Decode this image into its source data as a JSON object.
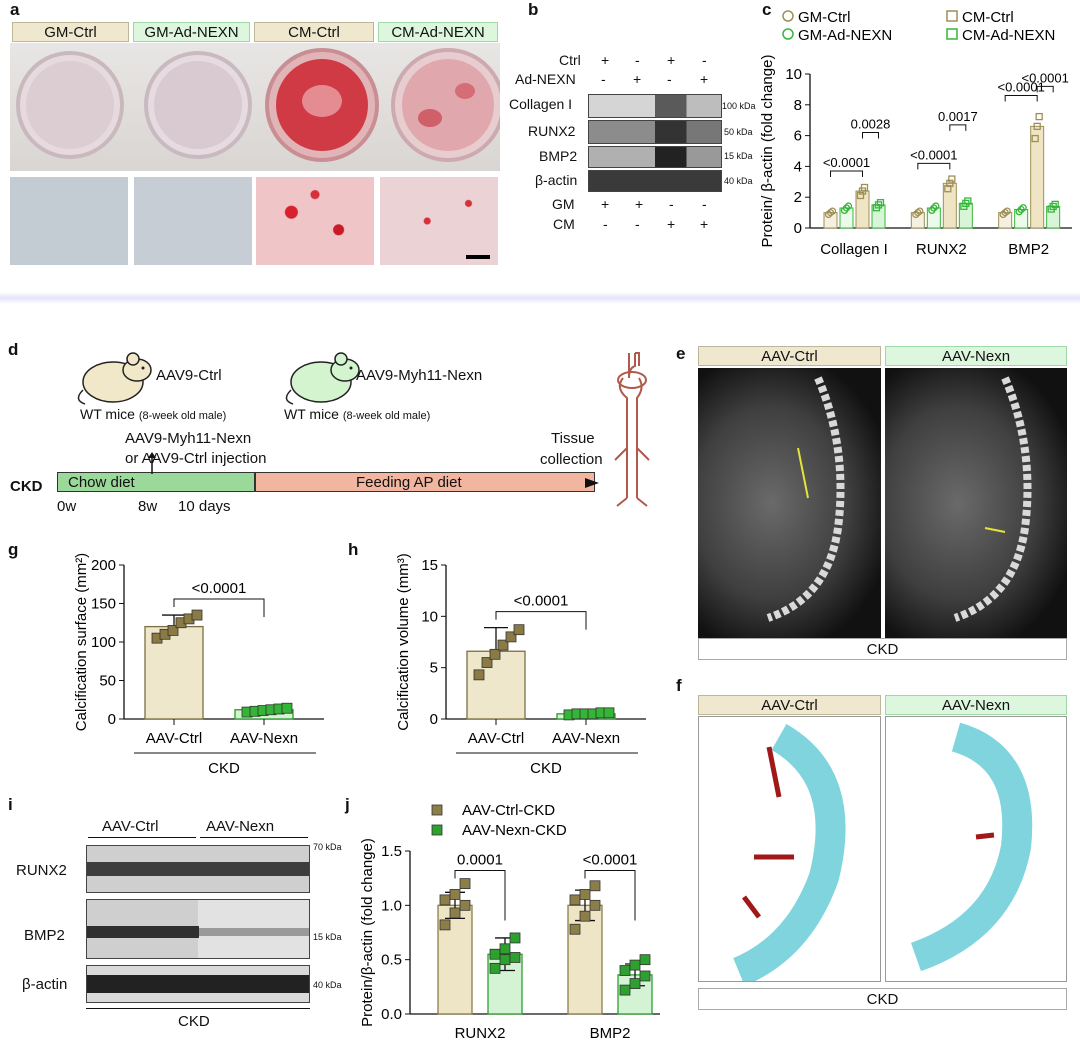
{
  "panel_labels": {
    "a": "a",
    "b": "b",
    "c": "c",
    "d": "d",
    "e": "e",
    "f": "f",
    "g": "g",
    "h": "h",
    "i": "i",
    "j": "j"
  },
  "panel_a": {
    "groups": [
      "GM-Ctrl",
      "GM-Ad-NEXN",
      "CM-Ctrl",
      "CM-Ad-NEXN"
    ]
  },
  "panel_b": {
    "row_labels": [
      "Ctrl",
      "Ad-NEXN"
    ],
    "ctrl_signs": [
      "+",
      "-",
      "+",
      "-"
    ],
    "adnexn_signs": [
      "-",
      "+",
      "-",
      "+"
    ],
    "bands": [
      "Collagen I",
      "RUNX2",
      "BMP2",
      "β-actin"
    ],
    "kda": [
      "100 kDa",
      "50 kDa",
      "15 kDa",
      "40 kDa"
    ],
    "bottom_labels": [
      "GM",
      "CM"
    ],
    "gm_signs": [
      "+",
      "+",
      "-",
      "-"
    ],
    "cm_signs": [
      "-",
      "-",
      "+",
      "+"
    ]
  },
  "panel_d": {
    "mouse1": "AAV9-Ctrl",
    "mouse2": "AAV9-Myh11-Nexn",
    "wt1": "WT mice",
    "wt1_sub": "(8-week old male)",
    "wt2": "WT mice",
    "wt2_sub": "(8-week old male)",
    "injection_line1": "AAV9-Myh11-Nexn",
    "injection_line2": "or AAV9-Ctrl injection",
    "tissue1": "Tissue",
    "tissue2": "collection",
    "ckd": "CKD",
    "chow": "Chow diet",
    "feeding": "Feeding AP diet",
    "t0": "0w",
    "t8": "8w",
    "t10": "10 days"
  },
  "panel_e": {
    "left": "AAV-Ctrl",
    "right": "AAV-Nexn",
    "footer": "CKD"
  },
  "panel_f": {
    "left": "AAV-Ctrl",
    "right": "AAV-Nexn",
    "footer": "CKD"
  },
  "panel_i": {
    "groups": [
      "AAV-Ctrl",
      "AAV-Nexn"
    ],
    "bands": [
      "RUNX2",
      "BMP2",
      "β-actin"
    ],
    "kda": [
      "70 kDa",
      "15 kDa",
      "40 kDa"
    ],
    "footer": "CKD"
  },
  "chart_data": [
    {
      "id": "c",
      "type": "bar",
      "ylabel": "Protein/ β-actin (fold change)",
      "ylim": [
        0,
        10
      ],
      "yticks": [
        0,
        2,
        4,
        6,
        8,
        10
      ],
      "categories": [
        "Collagen I",
        "RUNX2",
        "BMP2"
      ],
      "series": [
        {
          "name": "GM-Ctrl",
          "values": [
            1.0,
            1.0,
            1.0
          ],
          "color": "#9e8f57",
          "marker": "circle"
        },
        {
          "name": "GM-Ad-NEXN",
          "values": [
            1.3,
            1.3,
            1.2
          ],
          "color": "#36b63a",
          "marker": "circle"
        },
        {
          "name": "CM-Ctrl",
          "values": [
            2.4,
            2.9,
            6.6
          ],
          "color": "#9e8f57",
          "marker": "square"
        },
        {
          "name": "CM-Ad-NEXN",
          "values": [
            1.5,
            1.6,
            1.4
          ],
          "color": "#36b63a",
          "marker": "square"
        }
      ],
      "comparisons": [
        {
          "category": 0,
          "from": 0,
          "to": 2,
          "label": "<0.0001"
        },
        {
          "category": 0,
          "from": 2,
          "to": 3,
          "label": "0.0028"
        },
        {
          "category": 1,
          "from": 0,
          "to": 2,
          "label": "<0.0001"
        },
        {
          "category": 1,
          "from": 2,
          "to": 3,
          "label": "0.0017"
        },
        {
          "category": 2,
          "from": 0,
          "to": 2,
          "label": "<0.0001"
        },
        {
          "category": 2,
          "from": 2,
          "to": 3,
          "label": "<0.0001"
        }
      ]
    },
    {
      "id": "g",
      "type": "bar",
      "ylabel": "Calcification surface (mm²)",
      "ylim": [
        0,
        200
      ],
      "yticks": [
        0,
        50,
        100,
        150,
        200
      ],
      "categories": [
        "AAV-Ctrl",
        "AAV-Nexn"
      ],
      "values": [
        120,
        12
      ],
      "errors": [
        15,
        2
      ],
      "points": [
        [
          105,
          110,
          115,
          125,
          130,
          135
        ],
        [
          9,
          10,
          11,
          12,
          13,
          14
        ]
      ],
      "group_label": "CKD",
      "comparison": "<0.0001"
    },
    {
      "id": "h",
      "type": "bar",
      "ylabel": "Calcification volume (mm³)",
      "ylim": [
        0,
        15
      ],
      "yticks": [
        0,
        5,
        10,
        15
      ],
      "categories": [
        "AAV-Ctrl",
        "AAV-Nexn"
      ],
      "values": [
        6.6,
        0.5
      ],
      "errors": [
        2.3,
        0.1
      ],
      "points": [
        [
          4.3,
          5.5,
          6.3,
          7.2,
          8.0,
          8.7
        ],
        [
          0.4,
          0.5,
          0.5,
          0.5,
          0.6,
          0.6
        ]
      ],
      "group_label": "CKD",
      "comparison": "<0.0001"
    },
    {
      "id": "j",
      "type": "bar",
      "ylabel": "Protein/β-actin (fold change)",
      "ylim": [
        0,
        1.5
      ],
      "yticks": [
        0.0,
        0.5,
        1.0,
        1.5
      ],
      "categories": [
        "RUNX2",
        "BMP2"
      ],
      "series": [
        {
          "name": "AAV-Ctrl-CKD",
          "values": [
            1.0,
            1.0
          ],
          "errors": [
            0.12,
            0.14
          ],
          "points": [
            [
              0.82,
              0.93,
              1.0,
              1.05,
              1.1,
              1.2
            ],
            [
              0.78,
              0.9,
              1.0,
              1.05,
              1.1,
              1.18
            ]
          ],
          "color": "#8c7e49",
          "fill": "#eee4c6"
        },
        {
          "name": "AAV-Nexn-CKD",
          "values": [
            0.55,
            0.36
          ],
          "errors": [
            0.15,
            0.1
          ],
          "points": [
            [
              0.42,
              0.5,
              0.52,
              0.55,
              0.6,
              0.7
            ],
            [
              0.22,
              0.28,
              0.35,
              0.4,
              0.45,
              0.5
            ]
          ],
          "color": "#2da02f",
          "fill": "#d3f3d4"
        }
      ],
      "comparisons": [
        {
          "category": 0,
          "label": "0.0001"
        },
        {
          "category": 1,
          "label": "<0.0001"
        }
      ]
    }
  ]
}
